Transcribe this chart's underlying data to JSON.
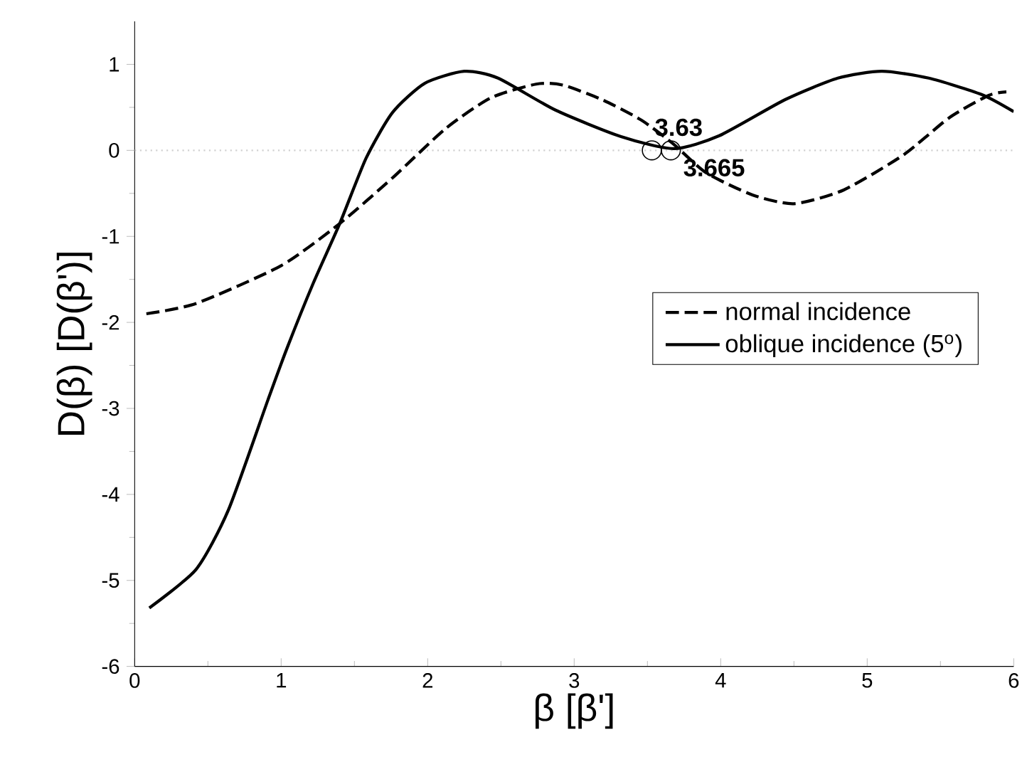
{
  "chart_data": {
    "type": "line",
    "xlabel": "β [β']",
    "ylabel": "D(β) [D(β')]",
    "xlim": [
      0,
      6
    ],
    "ylim": [
      -6,
      1.5
    ],
    "xticks": [
      0,
      1,
      2,
      3,
      4,
      5,
      6
    ],
    "yticks": [
      -6,
      -5,
      -4,
      -3,
      -2,
      -1,
      0,
      1
    ],
    "legend": "right",
    "grid": false,
    "marker": "none",
    "ref_lines": [
      {
        "axis": "y",
        "value": 0,
        "color": "#d0d0d0",
        "line_style": "dotted"
      }
    ],
    "annotations": [
      {
        "text": "3.63",
        "x": 3.53,
        "y": 0
      },
      {
        "text": "3.665",
        "x": 3.66,
        "y": 0
      }
    ],
    "series": [
      {
        "name": "normal incidence",
        "color": "#000000",
        "line_style": "dashed",
        "x": [
          0.08,
          0.42,
          1.0,
          1.4,
          1.76,
          2.12,
          2.43,
          2.74,
          2.92,
          3.19,
          3.46,
          3.68,
          3.9,
          4.22,
          4.5,
          4.84,
          5.25,
          5.56,
          5.83,
          5.95
        ],
        "values": [
          -1.9,
          -1.78,
          -1.34,
          -0.85,
          -0.32,
          0.25,
          0.61,
          0.77,
          0.76,
          0.59,
          0.35,
          0.07,
          -0.26,
          -0.52,
          -0.62,
          -0.46,
          -0.05,
          0.38,
          0.64,
          0.68
        ]
      },
      {
        "name": "oblique incidence (5$^{o}$)",
        "color": "#000000",
        "line_style": "solid",
        "x": [
          0.1,
          0.42,
          0.64,
          0.91,
          1.04,
          1.22,
          1.4,
          1.58,
          1.76,
          1.98,
          2.25,
          2.48,
          2.87,
          3.32,
          3.68,
          3.99,
          4.44,
          4.8,
          5.1,
          5.42,
          5.78,
          6.0
        ],
        "values": [
          -5.32,
          -4.87,
          -4.18,
          -2.9,
          -2.3,
          -1.54,
          -0.85,
          -0.09,
          0.44,
          0.78,
          0.92,
          0.84,
          0.47,
          0.16,
          0.02,
          0.17,
          0.59,
          0.84,
          0.92,
          0.84,
          0.65,
          0.45
        ]
      }
    ]
  }
}
